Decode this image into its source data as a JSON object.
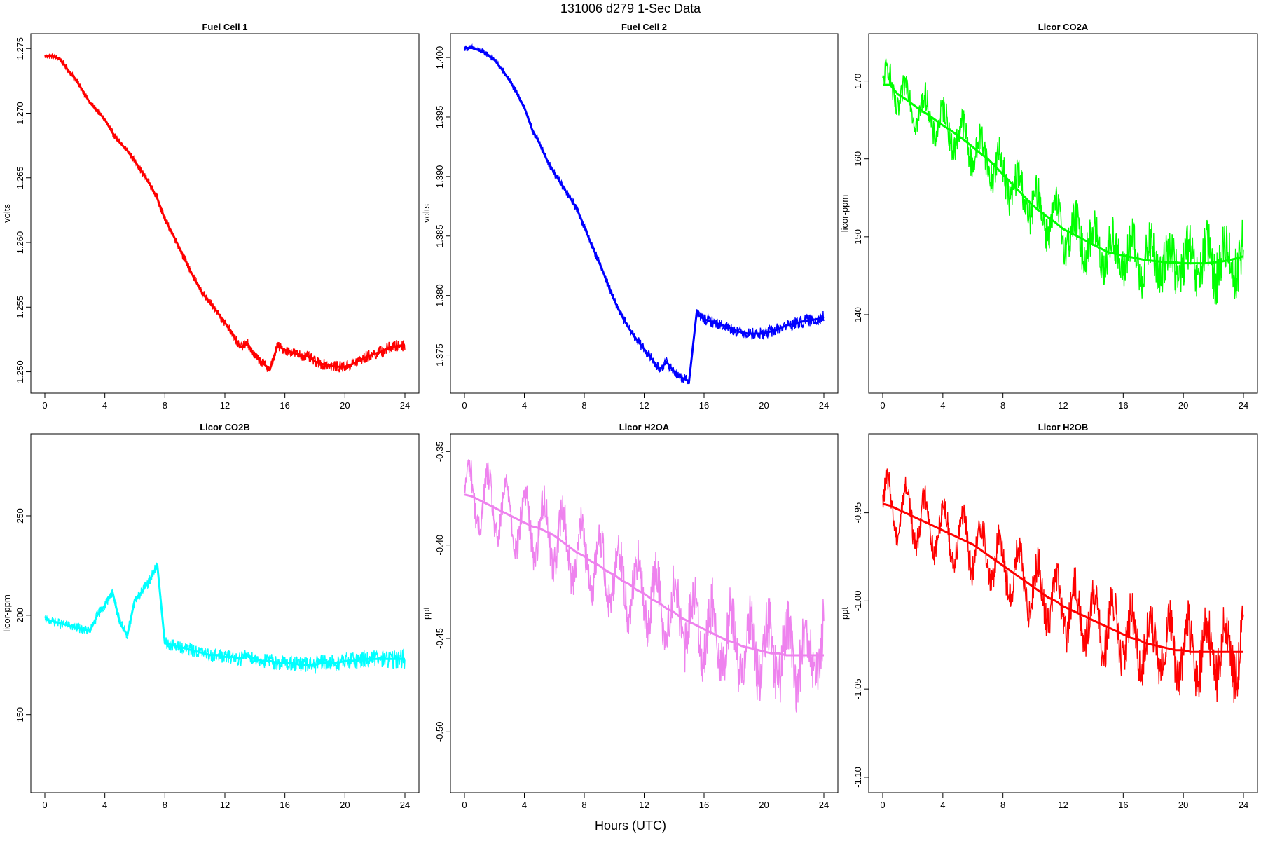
{
  "figure": {
    "title": "131006   d279   1-Sec Data",
    "xlabel": "Hours (UTC)"
  },
  "chart_data": [
    {
      "type": "line",
      "title": "Fuel Cell 1",
      "ylabel": "volts",
      "color": "#ff0000",
      "xlim": [
        0,
        24
      ],
      "ylim": [
        1.249,
        1.2755
      ],
      "xticks": [
        0,
        4,
        8,
        12,
        16,
        20,
        24
      ],
      "yticks": [
        "1.250",
        "1.255",
        "1.260",
        "1.265",
        "1.270",
        "1.275"
      ],
      "x": [
        0,
        0.5,
        1,
        1.5,
        2,
        2.5,
        3,
        3.5,
        4,
        4.5,
        5,
        5.5,
        6,
        6.5,
        7,
        7.5,
        8,
        8.5,
        9,
        9.5,
        10,
        10.5,
        11,
        11.5,
        12,
        12.5,
        13,
        13.5,
        14,
        14.5,
        15,
        15.5,
        16,
        16.5,
        17,
        17.5,
        18,
        18.5,
        19,
        19.5,
        20,
        20.5,
        21,
        21.5,
        22,
        22.5,
        23,
        23.5,
        24
      ],
      "y": [
        1.2744,
        1.2744,
        1.2742,
        1.2734,
        1.2727,
        1.2718,
        1.2708,
        1.2702,
        1.2695,
        1.2685,
        1.2677,
        1.2671,
        1.2663,
        1.2654,
        1.2645,
        1.2634,
        1.2618,
        1.2607,
        1.2595,
        1.2583,
        1.2571,
        1.2561,
        1.2553,
        1.2546,
        1.2538,
        1.253,
        1.2519,
        1.2522,
        1.2512,
        1.2507,
        1.2502,
        1.252,
        1.2517,
        1.2515,
        1.2513,
        1.2512,
        1.2508,
        1.2506,
        1.2505,
        1.2504,
        1.2504,
        1.2506,
        1.2509,
        1.2512,
        1.2514,
        1.2516,
        1.2519,
        1.252,
        1.2521
      ],
      "noise": 0.00035
    },
    {
      "type": "line",
      "title": "Fuel Cell 2",
      "ylabel": "volts",
      "color": "#0000ff",
      "xlim": [
        0,
        24
      ],
      "ylim": [
        1.3725,
        1.4013
      ],
      "xticks": [
        0,
        4,
        8,
        12,
        16,
        20,
        24
      ],
      "yticks": [
        "1.375",
        "1.380",
        "1.385",
        "1.390",
        "1.395",
        "1.400"
      ],
      "x": [
        0,
        0.5,
        1,
        1.5,
        2,
        2.5,
        3,
        3.5,
        4,
        4.5,
        5,
        5.5,
        6,
        6.5,
        7,
        7.5,
        8,
        8.5,
        9,
        9.5,
        10,
        10.5,
        11,
        11.5,
        12,
        12.5,
        13,
        13.5,
        14,
        14.5,
        15,
        15.5,
        16,
        16.5,
        17,
        17.5,
        18,
        18.5,
        19,
        19.5,
        20,
        20.5,
        21,
        21.5,
        22,
        22.5,
        23,
        23.5,
        24
      ],
      "y": [
        1.4008,
        1.4008,
        1.4006,
        1.4003,
        1.3998,
        1.399,
        1.3981,
        1.397,
        1.3958,
        1.394,
        1.3928,
        1.3914,
        1.3903,
        1.3893,
        1.3883,
        1.3873,
        1.3858,
        1.3842,
        1.3828,
        1.3812,
        1.3796,
        1.3783,
        1.3772,
        1.3763,
        1.3755,
        1.3747,
        1.3738,
        1.3744,
        1.3736,
        1.3731,
        1.3728,
        1.3785,
        1.378,
        1.3778,
        1.3776,
        1.3774,
        1.3771,
        1.3769,
        1.3768,
        1.3768,
        1.3768,
        1.377,
        1.3772,
        1.3775,
        1.3776,
        1.3778,
        1.3779,
        1.378,
        1.3782
      ],
      "noise": 0.0004
    },
    {
      "type": "line",
      "title": "Licor CO2A",
      "ylabel": "licor-ppm",
      "color": "#00ff00",
      "xlim": [
        0,
        24
      ],
      "ylim": [
        131,
        175
      ],
      "xticks": [
        0,
        4,
        8,
        12,
        16,
        20,
        24
      ],
      "yticks": [
        "140",
        "150",
        "160",
        "170"
      ],
      "x": [
        0,
        0.5,
        1,
        1.5,
        2,
        2.5,
        3,
        3.5,
        4,
        4.5,
        5,
        5.5,
        6,
        6.5,
        7,
        7.5,
        8,
        8.5,
        9,
        9.5,
        10,
        10.5,
        11,
        11.5,
        12,
        12.5,
        13,
        13.5,
        14,
        14.5,
        15,
        15.5,
        16,
        16.5,
        17,
        17.5,
        18,
        18.5,
        19,
        19.5,
        20,
        20.5,
        21,
        21.5,
        22,
        22.5,
        23,
        23.5,
        24
      ],
      "y": [
        169.5,
        169.5,
        168.3,
        167.7,
        167.0,
        166.3,
        165.7,
        165.0,
        164.3,
        163.7,
        163.0,
        162.3,
        161.5,
        160.7,
        160.0,
        159.0,
        158.0,
        157.0,
        156.0,
        155.0,
        154.0,
        153.2,
        152.5,
        151.8,
        151.0,
        150.5,
        150.0,
        149.5,
        149.0,
        148.5,
        148.0,
        147.8,
        147.6,
        147.4,
        147.2,
        147.0,
        146.9,
        146.8,
        146.7,
        146.7,
        146.6,
        146.6,
        146.6,
        146.6,
        146.7,
        146.8,
        147.0,
        147.2,
        147.5
      ],
      "noise": 2.6,
      "wave": 2.2
    },
    {
      "type": "line",
      "title": "Licor CO2B",
      "ylabel": "licor-ppm",
      "color": "#00ffff",
      "xlim": [
        0,
        24
      ],
      "ylim": [
        115,
        287
      ],
      "xticks": [
        0,
        4,
        8,
        12,
        16,
        20,
        24
      ],
      "yticks": [
        "150",
        "200",
        "250"
      ],
      "x": [
        0,
        0.5,
        1,
        1.5,
        2,
        2.5,
        3,
        3.5,
        4,
        4.5,
        5,
        5.5,
        6,
        6.5,
        7,
        7.5,
        8,
        8.5,
        9,
        9.5,
        10,
        10.5,
        11,
        11.5,
        12,
        12.5,
        13,
        13.5,
        14,
        14.5,
        15,
        15.5,
        16,
        16.5,
        17,
        17.5,
        18,
        18.5,
        19,
        19.5,
        20,
        20.5,
        21,
        21.5,
        22,
        22.5,
        23,
        23.5,
        24
      ],
      "y": [
        198,
        197,
        196,
        195,
        194,
        193,
        192,
        200,
        205,
        212,
        196,
        190,
        208,
        212,
        218,
        225,
        186,
        185,
        184,
        183,
        182,
        181,
        180,
        180,
        179,
        179,
        178,
        180,
        178,
        177,
        177,
        176,
        176,
        176,
        175,
        175,
        175,
        176,
        176,
        176,
        177,
        177,
        178,
        178,
        178,
        178,
        178,
        178,
        178
      ],
      "noise": 3.5
    },
    {
      "type": "line",
      "title": "Licor H2OA",
      "ylabel": "ppt",
      "color": "#ee82ee",
      "xlim": [
        0,
        24
      ],
      "ylim": [
        -0.528,
        -0.345
      ],
      "xticks": [
        0,
        4,
        8,
        12,
        16,
        20,
        24
      ],
      "yticks": [
        "-0.50",
        "-0.45",
        "-0.40",
        "-0.35"
      ],
      "x": [
        0,
        0.5,
        1,
        1.5,
        2,
        2.5,
        3,
        3.5,
        4,
        4.5,
        5,
        5.5,
        6,
        6.5,
        7,
        7.5,
        8,
        8.5,
        9,
        9.5,
        10,
        10.5,
        11,
        11.5,
        12,
        12.5,
        13,
        13.5,
        14,
        14.5,
        15,
        15.5,
        16,
        16.5,
        17,
        17.5,
        18,
        18.5,
        19,
        19.5,
        20,
        20.5,
        21,
        21.5,
        22,
        22.5,
        23,
        23.5,
        24
      ],
      "y": [
        -0.373,
        -0.374,
        -0.376,
        -0.378,
        -0.38,
        -0.382,
        -0.384,
        -0.386,
        -0.388,
        -0.39,
        -0.391,
        -0.393,
        -0.395,
        -0.398,
        -0.401,
        -0.404,
        -0.406,
        -0.409,
        -0.411,
        -0.414,
        -0.416,
        -0.419,
        -0.421,
        -0.424,
        -0.426,
        -0.429,
        -0.431,
        -0.434,
        -0.436,
        -0.439,
        -0.441,
        -0.443,
        -0.445,
        -0.447,
        -0.449,
        -0.451,
        -0.452,
        -0.454,
        -0.455,
        -0.456,
        -0.457,
        -0.458,
        -0.458,
        -0.459,
        -0.459,
        -0.459,
        -0.459,
        -0.459,
        -0.459
      ],
      "noise": 0.012,
      "wave": 0.016
    },
    {
      "type": "line",
      "title": "Licor H2OB",
      "ylabel": "ppt",
      "color": "#ff0000",
      "xlim": [
        0,
        24
      ],
      "ylim": [
        -1.104,
        -0.91
      ],
      "xticks": [
        0,
        4,
        8,
        12,
        16,
        20,
        24
      ],
      "yticks": [
        "-1.10",
        "-1.05",
        "-1.00",
        "-0.95"
      ],
      "x": [
        0,
        0.5,
        1,
        1.5,
        2,
        2.5,
        3,
        3.5,
        4,
        4.5,
        5,
        5.5,
        6,
        6.5,
        7,
        7.5,
        8,
        8.5,
        9,
        9.5,
        10,
        10.5,
        11,
        11.5,
        12,
        12.5,
        13,
        13.5,
        14,
        14.5,
        15,
        15.5,
        16,
        16.5,
        17,
        17.5,
        18,
        18.5,
        19,
        19.5,
        20,
        20.5,
        21,
        21.5,
        22,
        22.5,
        23,
        23.5,
        24
      ],
      "y": [
        -0.945,
        -0.946,
        -0.948,
        -0.95,
        -0.952,
        -0.954,
        -0.956,
        -0.958,
        -0.96,
        -0.962,
        -0.964,
        -0.966,
        -0.968,
        -0.971,
        -0.974,
        -0.977,
        -0.98,
        -0.983,
        -0.986,
        -0.989,
        -0.992,
        -0.995,
        -0.998,
        -1.0,
        -1.003,
        -1.005,
        -1.007,
        -1.009,
        -1.011,
        -1.013,
        -1.015,
        -1.017,
        -1.019,
        -1.021,
        -1.022,
        -1.024,
        -1.025,
        -1.026,
        -1.027,
        -1.028,
        -1.028,
        -1.029,
        -1.029,
        -1.029,
        -1.029,
        -1.029,
        -1.029,
        -1.029,
        -1.029
      ],
      "noise": 0.011,
      "wave": 0.015
    }
  ]
}
